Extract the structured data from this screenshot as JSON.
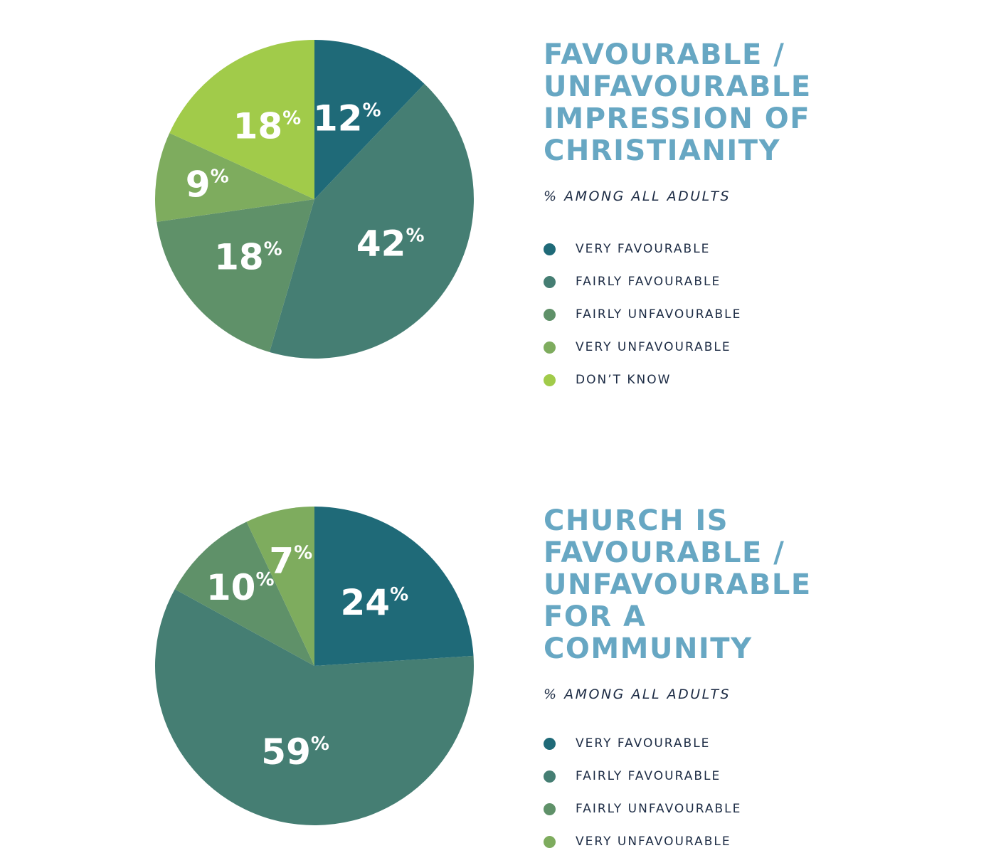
{
  "chart_data": [
    {
      "type": "pie",
      "title": "FAVOURABLE / UNFAVOURABLE IMPRESSION OF CHRISTIANITY",
      "subtitle": "% AMONG ALL ADULTS",
      "categories": [
        "VERY FAVOURABLE",
        "FAIRLY FAVOURABLE",
        "FAIRLY UNFAVOURABLE",
        "VERY UNFAVOURABLE",
        "DON’T KNOW"
      ],
      "values": [
        12,
        42,
        18,
        9,
        18
      ],
      "labels": [
        "12",
        "42",
        "18",
        "9",
        "18"
      ],
      "colors": [
        "#1f6a78",
        "#457e73",
        "#5f9169",
        "#7eac5e",
        "#a1cb4a"
      ],
      "legend": "right"
    },
    {
      "type": "pie",
      "title": "CHURCH IS FAVOURABLE / UNFAVOURABLE FOR A COMMUNITY",
      "subtitle": "% AMONG ALL ADULTS",
      "categories": [
        "VERY FAVOURABLE",
        "FAIRLY FAVOURABLE",
        "FAIRLY UNFAVOURABLE",
        "VERY UNFAVOURABLE"
      ],
      "values": [
        24,
        59,
        10,
        7
      ],
      "labels": [
        "24",
        "59",
        "10",
        "7"
      ],
      "colors": [
        "#1f6a78",
        "#457e73",
        "#5f9169",
        "#7eac5e"
      ],
      "legend": "right"
    }
  ],
  "percent_sign": "%"
}
